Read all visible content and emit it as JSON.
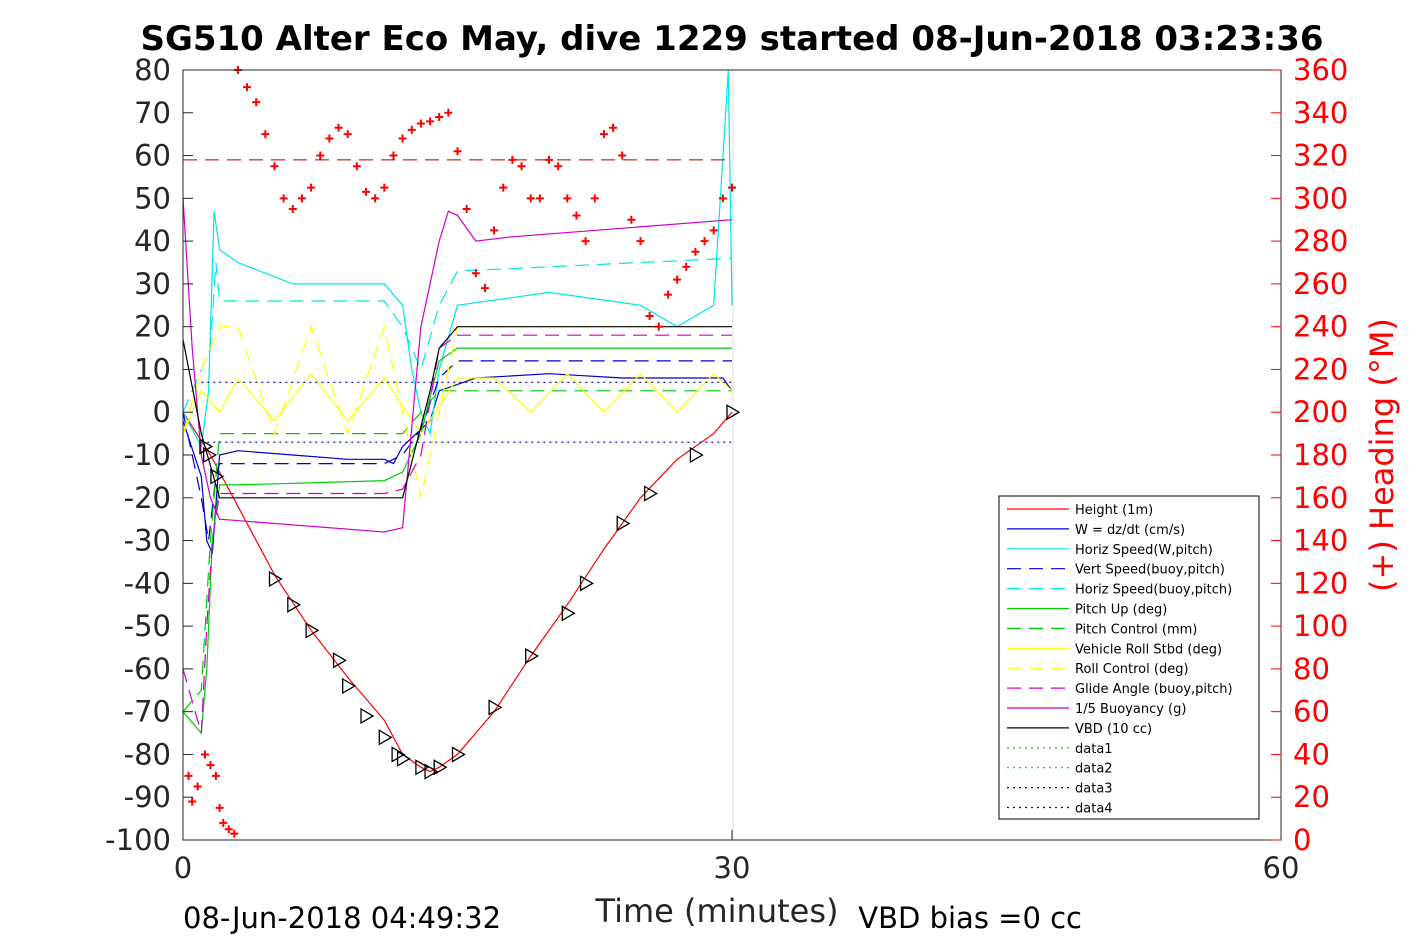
{
  "chart_data": {
    "type": "line",
    "title": "SG510 Alter Eco May, dive 1229 started 08-Jun-2018 03:23:36",
    "xlabel": "Time (minutes)",
    "ylabel": "",
    "y2label": "(+) Heading (°M)",
    "xlim": [
      0,
      60
    ],
    "ylim": [
      -100,
      80
    ],
    "y2lim": [
      0,
      360
    ],
    "xticks": [
      "0",
      "30",
      "60"
    ],
    "yticks": [
      "80",
      "70",
      "60",
      "50",
      "40",
      "30",
      "20",
      "10",
      "0",
      "-10",
      "-20",
      "-30",
      "-40",
      "-50",
      "-60",
      "-70",
      "-80",
      "-90",
      "-100"
    ],
    "y2ticks": [
      "360",
      "340",
      "320",
      "300",
      "280",
      "260",
      "240",
      "220",
      "200",
      "180",
      "160",
      "140",
      "120",
      "100",
      "80",
      "60",
      "40",
      "20",
      "0"
    ],
    "footer_left": "08-Jun-2018 04:49:32",
    "footer_right": "VBD bias =0 cc",
    "legend_position": "bottom-right",
    "grid": "x at 30",
    "colors": {
      "red": "#ff0000",
      "blue": "#0000cc",
      "cyan": "#00e5e5",
      "green": "#00cc00",
      "yellow": "#ffff00",
      "magenta": "#cc00cc",
      "black": "#000000",
      "darkred": "#aa0000"
    },
    "series": [
      {
        "name": "Height (1m)",
        "color": "#ff0000",
        "style": "solid",
        "x": [
          0,
          1.5,
          3,
          5,
          7,
          9,
          11,
          12,
          13,
          13.5,
          14,
          15,
          17,
          19,
          21,
          23,
          25,
          27,
          29,
          30
        ],
        "y": [
          0,
          -10,
          -22,
          -38,
          -51,
          -62,
          -72,
          -80,
          -83,
          -84,
          -83,
          -80,
          -70,
          -57,
          -45,
          -32,
          -20,
          -11,
          -5,
          0
        ]
      },
      {
        "name": "W = dz/dt (cm/s)",
        "color": "#0000cc",
        "style": "solid",
        "x": [
          0,
          1,
          1.3,
          1.6,
          2,
          3,
          6,
          9,
          11,
          11.5,
          12,
          13.5,
          14,
          16,
          20,
          24,
          27,
          29.5,
          30
        ],
        "y": [
          -2,
          -15,
          -30,
          -33,
          -10,
          -9,
          -10,
          -11,
          -11,
          -12,
          -8,
          -2,
          5,
          8,
          9,
          8,
          8,
          8,
          5
        ]
      },
      {
        "name": "Horiz Speed(W,pitch)",
        "color": "#00e5e5",
        "style": "solid",
        "x": [
          0,
          1,
          1.4,
          1.7,
          2,
          3,
          6,
          9,
          11,
          12,
          12.5,
          13,
          13.5,
          14,
          15,
          20,
          25,
          27,
          29,
          29.8,
          30
        ],
        "y": [
          0,
          -8,
          5,
          47,
          38,
          35,
          30,
          30,
          30,
          25,
          10,
          0,
          -5,
          10,
          25,
          28,
          25,
          20,
          25,
          80,
          25
        ]
      },
      {
        "name": "Vert Speed(buoy,pitch)",
        "color": "#0000cc",
        "style": "dash",
        "x": [
          0,
          1,
          1.4,
          1.8,
          2,
          6,
          11,
          12,
          13,
          14,
          15,
          30
        ],
        "y": [
          0,
          -20,
          -30,
          -15,
          -12,
          -12,
          -12,
          -10,
          -4,
          8,
          12,
          12
        ]
      },
      {
        "name": "Horiz Speed(buoy,pitch)",
        "color": "#00e5e5",
        "style": "dash",
        "x": [
          0,
          1.5,
          1.8,
          2,
          3,
          11,
          12,
          13,
          14,
          15,
          30
        ],
        "y": [
          0,
          15,
          35,
          26,
          26,
          26,
          20,
          10,
          25,
          33,
          36
        ]
      },
      {
        "name": "Pitch Up (deg)",
        "color": "#00cc00",
        "style": "solid",
        "x": [
          0,
          1,
          1.3,
          1.6,
          2,
          3,
          11,
          12,
          13,
          14,
          15,
          30
        ],
        "y": [
          -70,
          -75,
          -60,
          -30,
          -17,
          -17,
          -16,
          -14,
          -5,
          12,
          15,
          15
        ]
      },
      {
        "name": "Pitch Control (mm)",
        "color": "#00cc00",
        "style": "dash",
        "x": [
          0,
          1,
          1.5,
          2,
          11,
          12,
          14,
          30
        ],
        "y": [
          -70,
          -65,
          -30,
          -5,
          -5,
          -5,
          5,
          5
        ]
      },
      {
        "name": "Vehicle Roll Stbd (deg)",
        "color": "#ffff00",
        "style": "solid",
        "x": [
          0,
          1,
          2,
          3,
          5,
          7,
          9,
          11,
          13,
          15,
          17,
          19,
          21,
          23,
          25,
          27,
          29,
          30
        ],
        "y": [
          -5,
          5,
          0,
          8,
          -2,
          9,
          -2,
          8,
          -5,
          8,
          8,
          0,
          9,
          0,
          9,
          0,
          9,
          5
        ]
      },
      {
        "name": "Roll Control (deg)",
        "color": "#ffff00",
        "style": "dash",
        "x": [
          0,
          1,
          2,
          3,
          5,
          7,
          9,
          11,
          13,
          15,
          17,
          19,
          21,
          23,
          25,
          27,
          29,
          30
        ],
        "y": [
          -5,
          10,
          20,
          20,
          -5,
          20,
          -5,
          20,
          -20,
          20,
          20,
          20,
          20,
          20,
          20,
          20,
          20,
          20
        ]
      },
      {
        "name": "Glide Angle (buoy,pitch)",
        "color": "#cc00cc",
        "style": "dash",
        "x": [
          0,
          1,
          1.3,
          1.6,
          2,
          11,
          12,
          13,
          14,
          15,
          30
        ],
        "y": [
          -60,
          -75,
          -50,
          -30,
          -19,
          -19,
          -18,
          -10,
          15,
          18,
          18
        ]
      },
      {
        "name": "1/5 Buoyancy (g)",
        "color": "#cc00cc",
        "style": "solid",
        "x": [
          0,
          0.5,
          1,
          1.5,
          2,
          11,
          12,
          13,
          14,
          14.5,
          15,
          16,
          18,
          30
        ],
        "y": [
          50,
          15,
          -10,
          -20,
          -25,
          -28,
          -27,
          20,
          40,
          47,
          46,
          40,
          41,
          45
        ]
      },
      {
        "name": "VBD (10 cc)",
        "color": "#000000",
        "style": "solid",
        "x": [
          0,
          1,
          2,
          11.5,
          12,
          13.5,
          14,
          15,
          30
        ],
        "y": [
          17,
          -5,
          -20,
          -20,
          -20,
          5,
          15,
          20,
          20
        ]
      },
      {
        "name": "data1",
        "color": "#00cc00",
        "style": "dot",
        "x": [],
        "y": []
      },
      {
        "name": "data2",
        "color": "#00cc00",
        "style": "dot",
        "x": [],
        "y": []
      },
      {
        "name": "data3",
        "color": "#0000aa",
        "style": "dot",
        "x": [
          1,
          30
        ],
        "y": [
          7,
          7
        ]
      },
      {
        "name": "data4",
        "color": "#0000aa",
        "style": "dot",
        "x": [
          1,
          30
        ],
        "y": [
          -7,
          -7
        ]
      }
    ],
    "markers": {
      "x": [
        1.2,
        1.4,
        1.8,
        5,
        6,
        7,
        8.5,
        9,
        10,
        11,
        11.7,
        12,
        13,
        13.5,
        14,
        15,
        17,
        19,
        21,
        22,
        24,
        25.5,
        28,
        30
      ],
      "y": [
        -8,
        -10,
        -15,
        -39,
        -45,
        -51,
        -58,
        -64,
        -71,
        -76,
        -80,
        -81,
        -83,
        -84,
        -83,
        -80,
        -69,
        -57,
        -47,
        -40,
        -26,
        -19,
        -10,
        0
      ]
    },
    "heading": {
      "name": "(+) Heading (°M)",
      "x": [
        3,
        3.5,
        4,
        4.5,
        5,
        5.5,
        6,
        6.5,
        7,
        7.5,
        8,
        8.5,
        9,
        9.5,
        10,
        10.5,
        11,
        11.5,
        12,
        12.5,
        13,
        13.5,
        14,
        14.5,
        15,
        15.5,
        16,
        16.5,
        17,
        17.5,
        18,
        18.5,
        19,
        19.5,
        20,
        20.5,
        21,
        21.5,
        22,
        22.5,
        23,
        23.5,
        24,
        24.5,
        25,
        25.5,
        26,
        26.5,
        27,
        27.5,
        28,
        28.5,
        29,
        29.5,
        30
      ],
      "y": [
        360,
        352,
        345,
        330,
        315,
        300,
        295,
        300,
        305,
        320,
        328,
        333,
        330,
        315,
        303,
        300,
        305,
        320,
        328,
        332,
        335,
        336,
        338,
        340,
        322,
        295,
        265,
        258,
        285,
        305,
        318,
        315,
        300,
        300,
        318,
        315,
        300,
        292,
        280,
        300,
        330,
        333,
        320,
        290,
        280,
        245,
        240,
        255,
        262,
        268,
        275,
        280,
        285,
        300,
        305
      ],
      "early": {
        "x": [
          0.3,
          0.5,
          0.8,
          1.2,
          1.5,
          1.8,
          2,
          2.2,
          2.5,
          2.8
        ],
        "y": [
          30,
          18,
          25,
          40,
          35,
          30,
          15,
          8,
          5,
          3
        ]
      },
      "reference": 318
    }
  }
}
